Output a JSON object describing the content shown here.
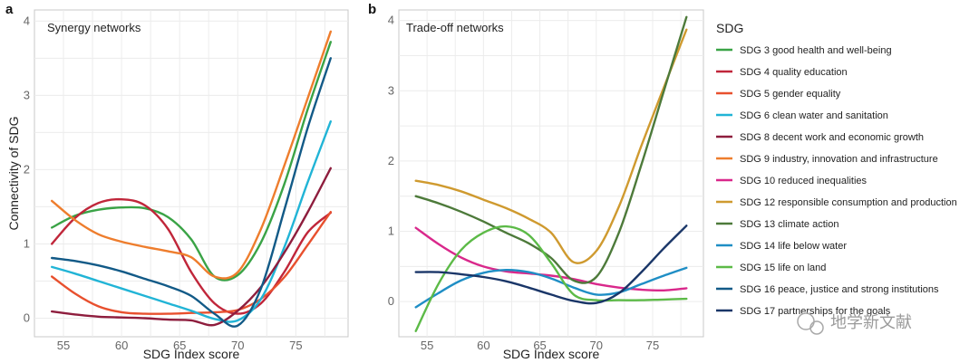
{
  "legend": {
    "title": "SDG",
    "items": [
      {
        "label": "SDG 3 good health and well-being",
        "color": "#3aa346"
      },
      {
        "label": "SDG 4 quality education",
        "color": "#c0263a"
      },
      {
        "label": "SDG 5 gender equality",
        "color": "#e8502e"
      },
      {
        "label": "SDG 6 clean water and sanitation",
        "color": "#21b4d6"
      },
      {
        "label": "SDG 8 decent work and economic growth",
        "color": "#8e1d3d"
      },
      {
        "label": "SDG 9 industry, innovation and infrastructure",
        "color": "#ee7d2d"
      },
      {
        "label": "SDG 10 reduced inequalities",
        "color": "#d9288b"
      },
      {
        "label": "SDG 12 responsible consumption and production",
        "color": "#cf9a2f"
      },
      {
        "label": "SDG 13 climate action",
        "color": "#4d7a3a"
      },
      {
        "label": "SDG 14 life below water",
        "color": "#1f8ec5"
      },
      {
        "label": "SDG 15 life on land",
        "color": "#5cba47"
      },
      {
        "label": "SDG 16 peace, justice and strong institutions",
        "color": "#125a87"
      },
      {
        "label": "SDG 17 partnerships for the goals",
        "color": "#1a3668"
      }
    ]
  },
  "watermark": {
    "text": "地学新文献"
  },
  "chart_data": [
    {
      "panel": "a",
      "type": "line",
      "title": "Synergy networks",
      "xlabel": "SDG Index score",
      "ylabel": "Connectivity of SDG",
      "xlim": [
        52.5,
        79.5
      ],
      "ylim": [
        -0.25,
        4.15
      ],
      "xticks": [
        "55",
        "60",
        "65",
        "70",
        "75"
      ],
      "yticks": [
        "0",
        "1",
        "2",
        "3",
        "4"
      ],
      "x": [
        54,
        56,
        58,
        60,
        62,
        64,
        66,
        68,
        70,
        72,
        74,
        76,
        78
      ],
      "series": [
        {
          "name": "SDG 3 good health and well-being",
          "values": [
            1.22,
            1.38,
            1.46,
            1.49,
            1.48,
            1.36,
            1.06,
            0.56,
            0.58,
            1.02,
            1.8,
            2.8,
            3.72
          ]
        },
        {
          "name": "SDG 4 quality education",
          "values": [
            1.0,
            1.35,
            1.55,
            1.6,
            1.52,
            1.2,
            0.62,
            0.2,
            0.06,
            0.2,
            0.62,
            1.15,
            1.42
          ]
        },
        {
          "name": "SDG 5 gender equality",
          "values": [
            0.56,
            0.33,
            0.16,
            0.08,
            0.06,
            0.06,
            0.07,
            0.08,
            0.11,
            0.26,
            0.55,
            0.98,
            1.43
          ]
        },
        {
          "name": "SDG 6 clean water and sanitation",
          "values": [
            0.69,
            0.6,
            0.5,
            0.4,
            0.3,
            0.2,
            0.1,
            -0.01,
            -0.03,
            0.26,
            0.95,
            1.82,
            2.65
          ]
        },
        {
          "name": "SDG 8 decent work and economic growth",
          "values": [
            0.09,
            0.05,
            0.02,
            0.01,
            0.0,
            -0.02,
            -0.03,
            -0.09,
            0.1,
            0.42,
            0.88,
            1.42,
            2.02
          ]
        },
        {
          "name": "SDG 9 industry, innovation and infrastructure",
          "values": [
            1.58,
            1.32,
            1.13,
            1.03,
            0.96,
            0.9,
            0.82,
            0.56,
            0.62,
            1.2,
            2.05,
            2.95,
            3.86
          ]
        },
        {
          "name": "SDG 16 peace, justice and strong institutions",
          "values": [
            0.81,
            0.77,
            0.71,
            0.63,
            0.53,
            0.43,
            0.3,
            0.06,
            -0.1,
            0.4,
            1.45,
            2.55,
            3.5
          ]
        }
      ]
    },
    {
      "panel": "b",
      "type": "line",
      "title": "Trade-off networks",
      "xlabel": "SDG Index score",
      "ylabel": "",
      "xlim": [
        52.5,
        79.5
      ],
      "ylim": [
        -0.5,
        4.15
      ],
      "xticks": [
        "55",
        "60",
        "65",
        "70",
        "75"
      ],
      "yticks": [
        "0",
        "1",
        "2",
        "3",
        "4"
      ],
      "x": [
        54,
        56,
        58,
        60,
        62,
        64,
        66,
        68,
        70,
        72,
        74,
        76,
        78
      ],
      "series": [
        {
          "name": "SDG 10 reduced inequalities",
          "values": [
            1.05,
            0.82,
            0.63,
            0.5,
            0.43,
            0.4,
            0.37,
            0.32,
            0.25,
            0.2,
            0.17,
            0.16,
            0.19
          ]
        },
        {
          "name": "SDG 12 responsible consumption and production",
          "values": [
            1.72,
            1.66,
            1.57,
            1.45,
            1.33,
            1.18,
            0.98,
            0.56,
            0.72,
            1.35,
            2.22,
            3.05,
            3.87
          ]
        },
        {
          "name": "SDG 13 climate action",
          "values": [
            1.5,
            1.4,
            1.28,
            1.14,
            0.98,
            0.83,
            0.62,
            0.3,
            0.35,
            0.98,
            1.95,
            3.0,
            4.05
          ]
        },
        {
          "name": "SDG 14 life below water",
          "values": [
            -0.08,
            0.12,
            0.3,
            0.41,
            0.45,
            0.42,
            0.33,
            0.2,
            0.1,
            0.13,
            0.25,
            0.37,
            0.48
          ]
        },
        {
          "name": "SDG 15 life on land",
          "values": [
            -0.42,
            0.25,
            0.73,
            0.98,
            1.07,
            0.95,
            0.55,
            0.1,
            0.02,
            0.02,
            0.02,
            0.03,
            0.04
          ]
        },
        {
          "name": "SDG 17 partnerships for the goals",
          "values": [
            0.42,
            0.42,
            0.39,
            0.35,
            0.29,
            0.2,
            0.1,
            0.01,
            -0.02,
            0.12,
            0.42,
            0.76,
            1.08
          ]
        }
      ]
    }
  ]
}
